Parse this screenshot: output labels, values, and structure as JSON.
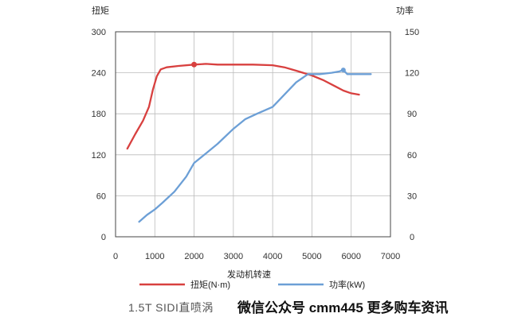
{
  "chart_data": {
    "type": "line",
    "x_axis": {
      "label": "发动机转速",
      "ticks": [
        0,
        1000,
        2000,
        3000,
        4000,
        5000,
        6000,
        7000
      ],
      "range": [
        0,
        7000
      ]
    },
    "y_axis_left": {
      "label": "扭矩",
      "ticks": [
        0,
        60,
        120,
        180,
        240,
        300
      ],
      "range": [
        0,
        300
      ]
    },
    "y_axis_right": {
      "label": "功率",
      "ticks": [
        0,
        30,
        60,
        90,
        120,
        150
      ],
      "range": [
        0,
        150
      ]
    },
    "series": [
      {
        "name": "扭矩(N·m)",
        "axis": "left",
        "color": "#d8403f",
        "points": [
          [
            300,
            129
          ],
          [
            500,
            150
          ],
          [
            700,
            170
          ],
          [
            850,
            190
          ],
          [
            950,
            215
          ],
          [
            1050,
            235
          ],
          [
            1150,
            245
          ],
          [
            1300,
            248
          ],
          [
            1600,
            250
          ],
          [
            2000,
            252
          ],
          [
            2300,
            253
          ],
          [
            2600,
            252
          ],
          [
            3000,
            252
          ],
          [
            3500,
            252
          ],
          [
            4000,
            251
          ],
          [
            4300,
            248
          ],
          [
            4600,
            243
          ],
          [
            5000,
            236
          ],
          [
            5300,
            229
          ],
          [
            5600,
            220
          ],
          [
            5800,
            214
          ],
          [
            6000,
            210
          ],
          [
            6200,
            208
          ]
        ]
      },
      {
        "name": "功率(kW)",
        "axis": "right",
        "color": "#6c9fd6",
        "points": [
          [
            600,
            11
          ],
          [
            800,
            16
          ],
          [
            1000,
            20
          ],
          [
            1200,
            25
          ],
          [
            1500,
            33
          ],
          [
            1800,
            44
          ],
          [
            2000,
            54
          ],
          [
            2300,
            61
          ],
          [
            2600,
            68
          ],
          [
            3000,
            79
          ],
          [
            3300,
            86
          ],
          [
            3600,
            90
          ],
          [
            4000,
            95
          ],
          [
            4300,
            104
          ],
          [
            4600,
            113
          ],
          [
            4900,
            119
          ],
          [
            5200,
            119
          ],
          [
            5500,
            120
          ],
          [
            5700,
            121
          ],
          [
            5800,
            122
          ],
          [
            5900,
            119
          ],
          [
            6000,
            119
          ],
          [
            6200,
            119
          ],
          [
            6500,
            119
          ]
        ]
      }
    ],
    "legend": {
      "placement": "bottom",
      "items": [
        {
          "label": "扭矩(N·m)",
          "color": "#d8403f"
        },
        {
          "label": "功率(kW)",
          "color": "#6c9fd6"
        }
      ]
    },
    "grid": true,
    "caption": "1.5T SIDI直喷涡",
    "watermark": "微信公众号 cmm445 更多购车资讯"
  }
}
